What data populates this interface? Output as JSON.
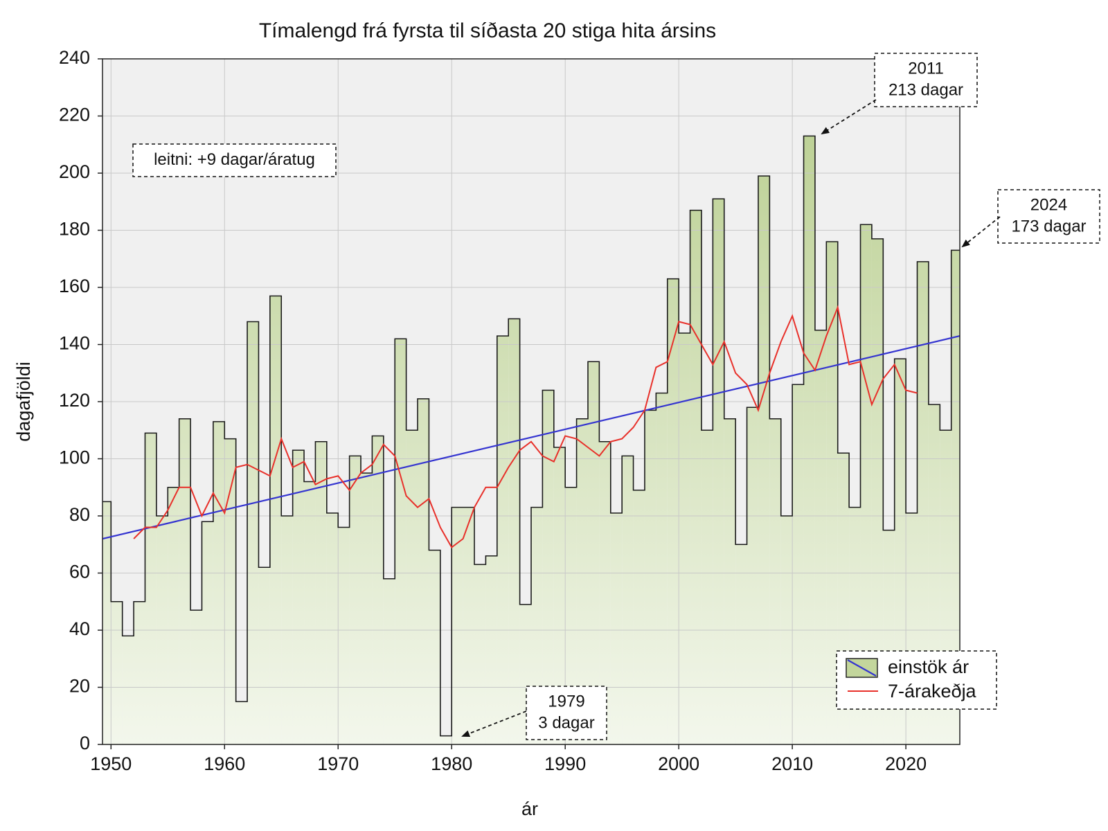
{
  "chart_data": {
    "type": "step",
    "title": "Tímalengd frá fyrsta til síðasta 20 stiga hita ársins",
    "x_label": "ár",
    "y_label": "dagafjöldi",
    "xlim": [
      1949.25,
      2024.75
    ],
    "ylim": [
      0,
      240
    ],
    "xticks": [
      1950,
      1960,
      1970,
      1980,
      1990,
      2000,
      2010,
      2020
    ],
    "yticks": [
      0,
      20,
      40,
      60,
      80,
      100,
      120,
      140,
      160,
      180,
      200,
      220,
      240
    ],
    "grid": true,
    "legend": "lower right",
    "series": [
      {
        "name": "einstök ár",
        "color": "#c3d69c",
        "edge": "#1a1a1a",
        "x": [
          1949,
          1950,
          1951,
          1952,
          1953,
          1954,
          1955,
          1956,
          1957,
          1958,
          1959,
          1960,
          1961,
          1962,
          1963,
          1964,
          1965,
          1966,
          1967,
          1968,
          1969,
          1970,
          1971,
          1972,
          1973,
          1974,
          1975,
          1976,
          1977,
          1978,
          1979,
          1980,
          1981,
          1982,
          1983,
          1984,
          1985,
          1986,
          1987,
          1988,
          1989,
          1990,
          1991,
          1992,
          1993,
          1994,
          1995,
          1996,
          1997,
          1998,
          1999,
          2000,
          2001,
          2002,
          2003,
          2004,
          2005,
          2006,
          2007,
          2008,
          2009,
          2010,
          2011,
          2012,
          2013,
          2014,
          2015,
          2016,
          2017,
          2018,
          2019,
          2020,
          2021,
          2022,
          2023,
          2024
        ],
        "values": [
          85,
          50,
          38,
          50,
          109,
          80,
          90,
          114,
          47,
          78,
          113,
          107,
          15,
          148,
          62,
          157,
          80,
          103,
          92,
          106,
          81,
          76,
          101,
          95,
          108,
          58,
          142,
          110,
          121,
          68,
          3,
          83,
          83,
          63,
          66,
          143,
          149,
          49,
          83,
          124,
          104,
          90,
          114,
          134,
          106,
          81,
          101,
          89,
          117,
          123,
          163,
          144,
          187,
          110,
          191,
          114,
          70,
          118,
          199,
          114,
          80,
          126,
          213,
          145,
          176,
          102,
          83,
          182,
          177,
          75,
          135,
          81,
          169,
          119,
          110,
          173
        ]
      },
      {
        "name": "7-árakeðja",
        "color": "#e8302a",
        "x": [
          1952,
          1953,
          1954,
          1955,
          1956,
          1957,
          1958,
          1959,
          1960,
          1961,
          1962,
          1963,
          1964,
          1965,
          1966,
          1967,
          1968,
          1969,
          1970,
          1971,
          1972,
          1973,
          1974,
          1975,
          1976,
          1977,
          1978,
          1979,
          1980,
          1981,
          1982,
          1983,
          1984,
          1985,
          1986,
          1987,
          1988,
          1989,
          1990,
          1991,
          1992,
          1993,
          1994,
          1995,
          1996,
          1997,
          1998,
          1999,
          2000,
          2001,
          2002,
          2003,
          2004,
          2005,
          2006,
          2007,
          2008,
          2009,
          2010,
          2011,
          2012,
          2013,
          2014,
          2015,
          2016,
          2017,
          2018,
          2019,
          2020,
          2021
        ],
        "values": [
          72,
          76,
          76,
          82,
          90,
          90,
          80,
          88,
          81,
          97,
          98,
          96,
          94,
          107,
          97,
          99,
          91,
          93,
          94,
          89,
          95,
          98,
          105,
          101,
          87,
          83,
          86,
          76,
          69,
          72,
          83,
          90,
          90,
          97,
          103,
          106,
          101,
          99,
          108,
          107,
          104,
          101,
          106,
          107,
          111,
          117,
          132,
          134,
          148,
          147,
          140,
          133,
          141,
          130,
          126,
          117,
          130,
          141,
          150,
          137,
          131,
          143,
          153,
          133,
          134,
          119,
          128,
          133,
          124,
          123
        ]
      }
    ],
    "trend": {
      "color": "#3434d0",
      "x": [
        1949.25,
        2024.75
      ],
      "values": [
        72,
        143
      ]
    },
    "annotations": [
      {
        "lines": [
          "leitni: +9 dagar/áratug"
        ]
      },
      {
        "lines": [
          "2011",
          "213 dagar"
        ]
      },
      {
        "lines": [
          "2024",
          "173 dagar"
        ]
      },
      {
        "lines": [
          "1979",
          "3 dagar"
        ]
      }
    ]
  }
}
